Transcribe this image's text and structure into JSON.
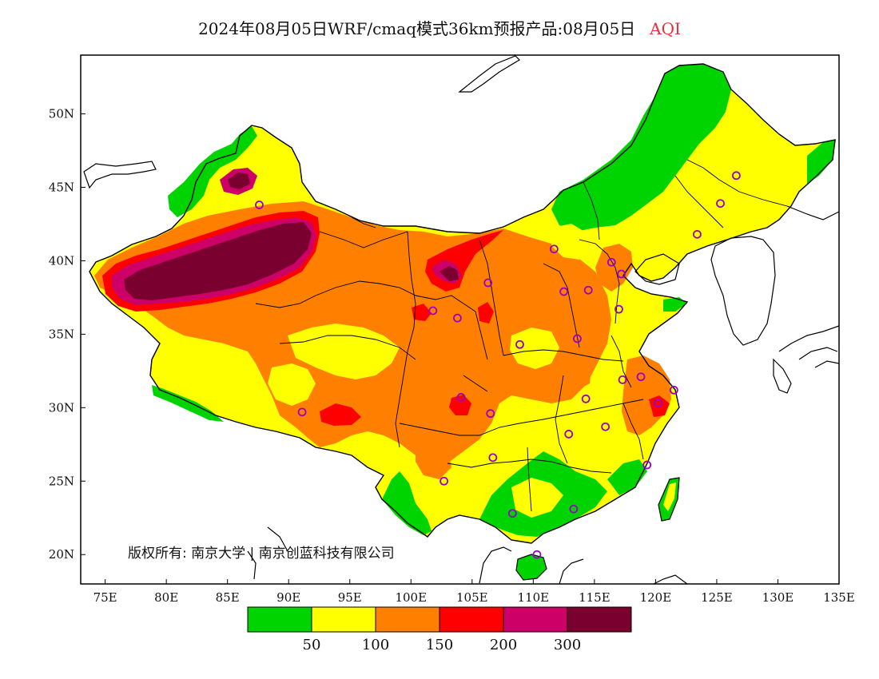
{
  "title": {
    "text": "2024年08月05日WRF/cmaq模式36km预报产品:08月05日",
    "product": "AQI",
    "product_color": "#e8303a"
  },
  "map": {
    "lon_range": [
      73,
      135
    ],
    "lat_range": [
      18,
      54
    ],
    "x_ticks": [
      "75E",
      "80E",
      "85E",
      "90E",
      "95E",
      "100E",
      "105E",
      "110E",
      "115E",
      "120E",
      "125E",
      "130E",
      "135E"
    ],
    "y_ticks": [
      "50N",
      "45N",
      "40N",
      "35N",
      "30N",
      "25N",
      "20N"
    ],
    "copyright": "版权所有: 南京大学 | 南京创蓝科技有限公司",
    "colors": {
      "lt50": "#00d400",
      "50_100": "#ffff00",
      "100_150": "#ff7f00",
      "150_200": "#ff0000",
      "200_300": "#cc0066",
      "gt300": "#7a0030",
      "ocean": "#ffffff",
      "border": "#000000",
      "city_marker": "#9900cc"
    },
    "city_markers": [
      [
        87.6,
        43.8
      ],
      [
        91.1,
        29.7
      ],
      [
        101.8,
        36.6
      ],
      [
        103.8,
        36.1
      ],
      [
        106.3,
        38.5
      ],
      [
        104.1,
        30.7
      ],
      [
        106.5,
        29.6
      ],
      [
        102.7,
        25.0
      ],
      [
        106.7,
        26.6
      ],
      [
        108.3,
        22.8
      ],
      [
        110.3,
        20.0
      ],
      [
        113.3,
        23.1
      ],
      [
        112.9,
        28.2
      ],
      [
        114.3,
        30.6
      ],
      [
        113.6,
        34.7
      ],
      [
        108.9,
        34.3
      ],
      [
        111.7,
        40.8
      ],
      [
        112.5,
        37.9
      ],
      [
        114.5,
        38.0
      ],
      [
        116.4,
        39.9
      ],
      [
        117.2,
        39.1
      ],
      [
        117.0,
        36.7
      ],
      [
        117.3,
        31.9
      ],
      [
        115.9,
        28.7
      ],
      [
        119.3,
        26.1
      ],
      [
        120.2,
        30.3
      ],
      [
        118.8,
        32.1
      ],
      [
        121.5,
        31.2
      ],
      [
        123.4,
        41.8
      ],
      [
        125.3,
        43.9
      ],
      [
        126.6,
        45.8
      ]
    ]
  },
  "legend": {
    "colors": [
      "#00d400",
      "#ffff00",
      "#ff7f00",
      "#ff0000",
      "#cc0066",
      "#7a0030"
    ],
    "labels": [
      "50",
      "100",
      "150",
      "200",
      "300"
    ]
  }
}
